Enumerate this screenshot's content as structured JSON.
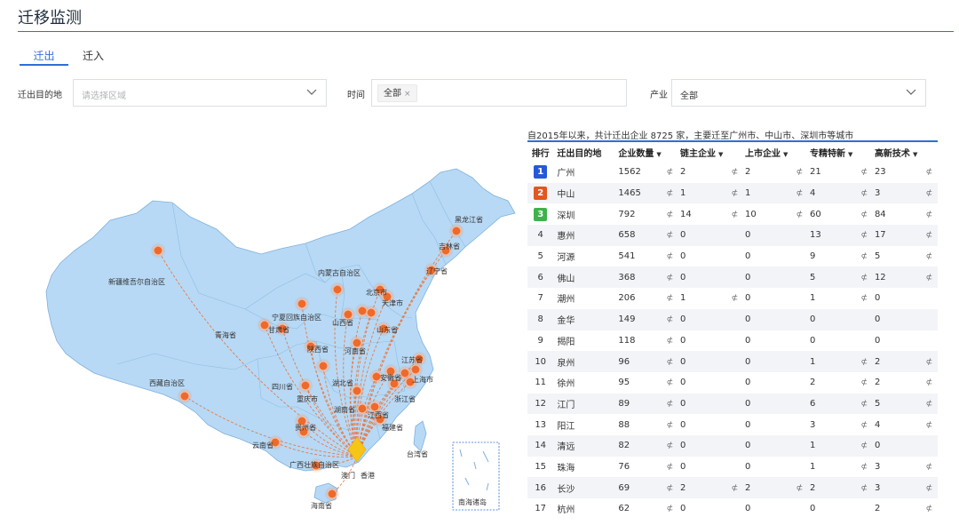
{
  "page": {
    "title": "迁移监测"
  },
  "tabs": [
    {
      "label": "迁出",
      "active": true
    },
    {
      "label": "迁入",
      "active": false
    }
  ],
  "filters": {
    "destination": {
      "label": "迁出目的地",
      "placeholder": "请选择区域"
    },
    "time": {
      "label": "时间",
      "tag": "全部",
      "tag_close": "×"
    },
    "industry": {
      "label": "产业",
      "value": "全部"
    }
  },
  "summary": "自2015年以来，共计迁出企业 8725 家，主要迁至广州市、中山市、深圳市等城市",
  "table": {
    "headers": {
      "rank": "排行",
      "dest": "迁出目的地",
      "count": "企业数量",
      "chain": "链主企业",
      "listed": "上市企业",
      "special": "专精特新",
      "hightech": "高新技术"
    },
    "sort_glyph": "▼",
    "link_glyph": "⊄",
    "rows": [
      {
        "rank": "1",
        "dest": "广州",
        "count": "1562",
        "chain": "2",
        "listed": "2",
        "special": "21",
        "hightech": "23"
      },
      {
        "rank": "2",
        "dest": "中山",
        "count": "1465",
        "chain": "1",
        "listed": "1",
        "special": "4",
        "hightech": "3"
      },
      {
        "rank": "3",
        "dest": "深圳",
        "count": "792",
        "chain": "14",
        "listed": "10",
        "special": "60",
        "hightech": "84"
      },
      {
        "rank": "4",
        "dest": "惠州",
        "count": "658",
        "chain": "0",
        "listed": "0",
        "special": "13",
        "hightech": "17"
      },
      {
        "rank": "5",
        "dest": "河源",
        "count": "541",
        "chain": "0",
        "listed": "0",
        "special": "9",
        "hightech": "5"
      },
      {
        "rank": "6",
        "dest": "佛山",
        "count": "368",
        "chain": "0",
        "listed": "0",
        "special": "5",
        "hightech": "12"
      },
      {
        "rank": "7",
        "dest": "潮州",
        "count": "206",
        "chain": "1",
        "listed": "0",
        "special": "1",
        "hightech": "0"
      },
      {
        "rank": "8",
        "dest": "金华",
        "count": "149",
        "chain": "0",
        "listed": "0",
        "special": "0",
        "hightech": "0"
      },
      {
        "rank": "9",
        "dest": "揭阳",
        "count": "118",
        "chain": "0",
        "listed": "0",
        "special": "0",
        "hightech": "0"
      },
      {
        "rank": "10",
        "dest": "泉州",
        "count": "96",
        "chain": "0",
        "listed": "0",
        "special": "1",
        "hightech": "2"
      },
      {
        "rank": "11",
        "dest": "徐州",
        "count": "95",
        "chain": "0",
        "listed": "0",
        "special": "2",
        "hightech": "2"
      },
      {
        "rank": "12",
        "dest": "江门",
        "count": "89",
        "chain": "0",
        "listed": "0",
        "special": "6",
        "hightech": "5"
      },
      {
        "rank": "13",
        "dest": "阳江",
        "count": "88",
        "chain": "0",
        "listed": "0",
        "special": "3",
        "hightech": "4"
      },
      {
        "rank": "14",
        "dest": "清远",
        "count": "82",
        "chain": "0",
        "listed": "0",
        "special": "1",
        "hightech": "0"
      },
      {
        "rank": "15",
        "dest": "珠海",
        "count": "76",
        "chain": "0",
        "listed": "0",
        "special": "1",
        "hightech": "3"
      },
      {
        "rank": "16",
        "dest": "长沙",
        "count": "69",
        "chain": "2",
        "listed": "2",
        "special": "2",
        "hightech": "3"
      },
      {
        "rank": "17",
        "dest": "杭州",
        "count": "62",
        "chain": "0",
        "listed": "0",
        "special": "0",
        "hightech": "2"
      }
    ]
  },
  "map": {
    "province_labels": [
      "新疆维吾尔自治区",
      "西藏自治区",
      "青海省",
      "内蒙古自治区",
      "黑龙江省",
      "宁夏回族自治区",
      "山东省",
      "江苏省",
      "浙江省",
      "台湾省",
      "香港",
      "澳门",
      "海南省",
      "南海诸岛",
      "云南省",
      "广西壮族自治区",
      "北京市",
      "天津市",
      "河南省",
      "湖北省",
      "湖南省",
      "江西省",
      "福建省",
      "安徽省",
      "上海市",
      "四川省",
      "重庆市",
      "贵州省",
      "陕西省",
      "山西省",
      "甘肃省",
      "吉林省",
      "辽宁省"
    ],
    "colors": {
      "land": "#b7d9f5",
      "border": "#7fb0dc",
      "marker": "#ee6a2c",
      "origin": "#f5c518",
      "flow": "#ee6a2c"
    }
  }
}
